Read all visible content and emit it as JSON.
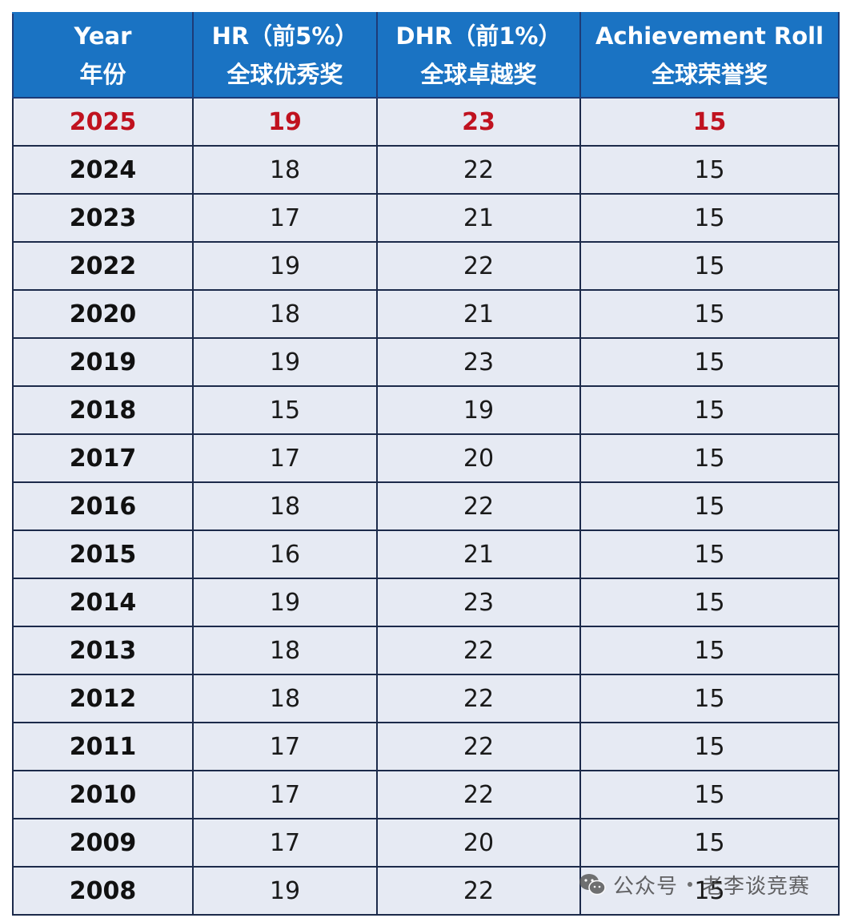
{
  "table": {
    "headers": [
      {
        "line1": "Year",
        "line2": "年份"
      },
      {
        "line1": "HR（前5%）",
        "line2": "全球优秀奖"
      },
      {
        "line1": "DHR（前1%）",
        "line2": "全球卓越奖"
      },
      {
        "line1": "Achievement Roll",
        "line2": "全球荣誉奖"
      }
    ],
    "highlight_color": "#c0121f",
    "header_color": "#1a73c3",
    "rows": [
      {
        "year": "2025",
        "hr": "19",
        "dhr": "23",
        "ar": "15",
        "highlight": true
      },
      {
        "year": "2024",
        "hr": "18",
        "dhr": "22",
        "ar": "15"
      },
      {
        "year": "2023",
        "hr": "17",
        "dhr": "21",
        "ar": "15"
      },
      {
        "year": "2022",
        "hr": "19",
        "dhr": "22",
        "ar": "15"
      },
      {
        "year": "2020",
        "hr": "18",
        "dhr": "21",
        "ar": "15"
      },
      {
        "year": "2019",
        "hr": "19",
        "dhr": "23",
        "ar": "15"
      },
      {
        "year": "2018",
        "hr": "15",
        "dhr": "19",
        "ar": "15"
      },
      {
        "year": "2017",
        "hr": "17",
        "dhr": "20",
        "ar": "15"
      },
      {
        "year": "2016",
        "hr": "18",
        "dhr": "22",
        "ar": "15"
      },
      {
        "year": "2015",
        "hr": "16",
        "dhr": "21",
        "ar": "15"
      },
      {
        "year": "2014",
        "hr": "19",
        "dhr": "23",
        "ar": "15"
      },
      {
        "year": "2013",
        "hr": "18",
        "dhr": "22",
        "ar": "15"
      },
      {
        "year": "2012",
        "hr": "18",
        "dhr": "22",
        "ar": "15"
      },
      {
        "year": "2011",
        "hr": "17",
        "dhr": "22",
        "ar": "15"
      },
      {
        "year": "2010",
        "hr": "17",
        "dhr": "22",
        "ar": "15"
      },
      {
        "year": "2009",
        "hr": "17",
        "dhr": "20",
        "ar": "15"
      },
      {
        "year": "2008",
        "hr": "19",
        "dhr": "22",
        "ar": "15"
      }
    ]
  },
  "watermark": {
    "icon": "wechat-icon",
    "account_type": "公众号",
    "account_name": "老李谈竞赛"
  }
}
